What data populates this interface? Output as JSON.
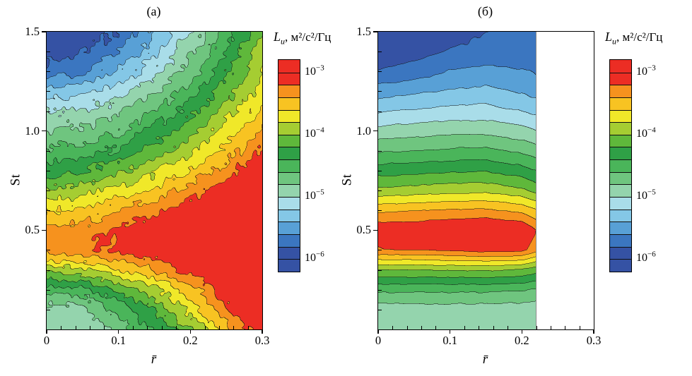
{
  "figure": {
    "background": "#ffffff"
  },
  "colorbar": {
    "symbol": "L",
    "symbol_sub": "u",
    "units": ", м²/с²/Гц",
    "bar_vmin": -6.2,
    "bar_vmax": -2.8,
    "ticks": [
      {
        "base": "10",
        "exp": "−3",
        "value": -3
      },
      {
        "base": "10",
        "exp": "−4",
        "value": -4
      },
      {
        "base": "10",
        "exp": "−5",
        "value": -5
      },
      {
        "base": "10",
        "exp": "−6",
        "value": -6
      }
    ]
  },
  "chart_data": {
    "type": "heatmap",
    "subtype": "filled-contour",
    "quantity": "power spectral density L_u of velocity fluctuations",
    "levels": {
      "vmin": -6,
      "vmax": -3,
      "step": 0.2,
      "scale": "log10"
    },
    "palette": [
      "#3552a4",
      "#3b76c0",
      "#58a0d6",
      "#84c7e6",
      "#a9dde9",
      "#94d4ad",
      "#6fc57f",
      "#4ab55a",
      "#2fa046",
      "#5fb83b",
      "#a5cd32",
      "#f0e829",
      "#f8c322",
      "#f6921e",
      "#ec2d24"
    ],
    "contour_line_color": "#151515",
    "panels": [
      {
        "title": "(а)",
        "xlabel": "r̄",
        "ylabel": "St",
        "x_range": [
          0,
          0.3
        ],
        "y_range": [
          0,
          1.5
        ],
        "x_ticks": [
          {
            "label": "0",
            "value": 0
          },
          {
            "label": "0.1",
            "value": 0.1
          },
          {
            "label": "0.2",
            "value": 0.2
          },
          {
            "label": "0.3",
            "value": 0.3
          }
        ],
        "y_ticks": [
          {
            "label": "0.5",
            "value": 0.5
          },
          {
            "label": "1.0",
            "value": 1.0
          },
          {
            "label": "1.5",
            "value": 1.5
          }
        ],
        "x_minor_step": 0.02,
        "y_minor_step": 0.1,
        "data_x_max": 0.3,
        "noise": 0.12,
        "noise_cell": 6,
        "grid_x": [
          0,
          0.05,
          0.1,
          0.15,
          0.2,
          0.25,
          0.3
        ],
        "grid_y": [
          0,
          0.1,
          0.2,
          0.3,
          0.4,
          0.5,
          0.6,
          0.7,
          0.8,
          0.9,
          1.0,
          1.1,
          1.2,
          1.3,
          1.4,
          1.5
        ],
        "values": [
          [
            -4.95,
            -4.9,
            -4.75,
            -4.4,
            -4.0,
            -3.5,
            -3.0
          ],
          [
            -4.9,
            -4.85,
            -4.55,
            -4.15,
            -3.75,
            -3.25,
            -2.85
          ],
          [
            -4.55,
            -4.45,
            -4.15,
            -3.85,
            -3.5,
            -3.1,
            -2.8
          ],
          [
            -3.9,
            -3.85,
            -3.6,
            -3.4,
            -3.1,
            -2.9,
            -2.7
          ],
          [
            -3.3,
            -3.25,
            -3.15,
            -3.0,
            -2.85,
            -2.7,
            -2.6
          ],
          [
            -3.35,
            -3.3,
            -3.15,
            -3.0,
            -2.8,
            -2.65,
            -2.55
          ],
          [
            -3.6,
            -3.55,
            -3.4,
            -3.25,
            -3.05,
            -2.85,
            -2.65
          ],
          [
            -4.0,
            -3.9,
            -3.75,
            -3.55,
            -3.3,
            -3.05,
            -2.8
          ],
          [
            -4.3,
            -4.2,
            -4.05,
            -3.85,
            -3.6,
            -3.3,
            -3.0
          ],
          [
            -4.55,
            -4.5,
            -4.35,
            -4.1,
            -3.85,
            -3.5,
            -3.2
          ],
          [
            -4.8,
            -4.75,
            -4.6,
            -4.35,
            -4.05,
            -3.7,
            -3.4
          ],
          [
            -5.0,
            -4.95,
            -4.85,
            -4.6,
            -4.3,
            -3.9,
            -3.55
          ],
          [
            -5.35,
            -5.25,
            -5.1,
            -4.85,
            -4.5,
            -4.1,
            -3.7
          ],
          [
            -5.7,
            -5.6,
            -5.35,
            -5.05,
            -4.7,
            -4.25,
            -3.8
          ],
          [
            -5.95,
            -5.85,
            -5.6,
            -5.25,
            -4.85,
            -4.4,
            -3.9
          ],
          [
            -6.1,
            -6.0,
            -5.75,
            -5.4,
            -5.0,
            -4.5,
            -4.0
          ]
        ]
      },
      {
        "title": "(б)",
        "xlabel": "r̄",
        "ylabel": "St",
        "x_range": [
          0,
          0.3
        ],
        "y_range": [
          0,
          1.5
        ],
        "x_ticks": [
          {
            "label": "0",
            "value": 0
          },
          {
            "label": "0.1",
            "value": 0.1
          },
          {
            "label": "0.2",
            "value": 0.2
          },
          {
            "label": "0.3",
            "value": 0.3
          }
        ],
        "y_ticks": [
          {
            "label": "0.5",
            "value": 0.5
          },
          {
            "label": "1.0",
            "value": 1.0
          },
          {
            "label": "1.5",
            "value": 1.5
          }
        ],
        "x_minor_step": 0.02,
        "y_minor_step": 0.1,
        "data_x_max": 0.22,
        "noise": 0.02,
        "noise_cell": 9,
        "grid_x": [
          0,
          0.05,
          0.1,
          0.15,
          0.2,
          0.22
        ],
        "grid_y": [
          0,
          0.1,
          0.2,
          0.3,
          0.4,
          0.5,
          0.6,
          0.7,
          0.8,
          0.9,
          1.0,
          1.1,
          1.2,
          1.3,
          1.4,
          1.5
        ],
        "values": [
          [
            -4.97,
            -4.97,
            -4.97,
            -4.97,
            -4.97,
            -4.97
          ],
          [
            -4.9,
            -4.9,
            -4.9,
            -4.9,
            -4.9,
            -4.92
          ],
          [
            -4.55,
            -4.55,
            -4.55,
            -4.55,
            -4.58,
            -4.62
          ],
          [
            -4.0,
            -4.0,
            -3.98,
            -3.97,
            -4.02,
            -4.12
          ],
          [
            -3.22,
            -3.2,
            -3.16,
            -3.12,
            -3.14,
            -3.32
          ],
          [
            -3.06,
            -3.03,
            -2.99,
            -2.94,
            -3.0,
            -3.2
          ],
          [
            -3.45,
            -3.42,
            -3.38,
            -3.36,
            -3.46,
            -3.58
          ],
          [
            -3.95,
            -3.92,
            -3.88,
            -3.86,
            -3.96,
            -4.06
          ],
          [
            -4.3,
            -4.27,
            -4.23,
            -4.22,
            -4.32,
            -4.4
          ],
          [
            -4.63,
            -4.6,
            -4.56,
            -4.55,
            -4.64,
            -4.7
          ],
          [
            -4.93,
            -4.9,
            -4.86,
            -4.85,
            -4.94,
            -5.0
          ],
          [
            -5.22,
            -5.18,
            -5.13,
            -5.12,
            -5.2,
            -5.26
          ],
          [
            -5.5,
            -5.44,
            -5.38,
            -5.35,
            -5.42,
            -5.48
          ],
          [
            -5.78,
            -5.7,
            -5.6,
            -5.55,
            -5.58,
            -5.62
          ],
          [
            -6.0,
            -5.9,
            -5.78,
            -5.7,
            -5.7,
            -5.74
          ],
          [
            -6.18,
            -6.06,
            -5.92,
            -5.8,
            -5.78,
            -5.8
          ]
        ]
      }
    ]
  }
}
